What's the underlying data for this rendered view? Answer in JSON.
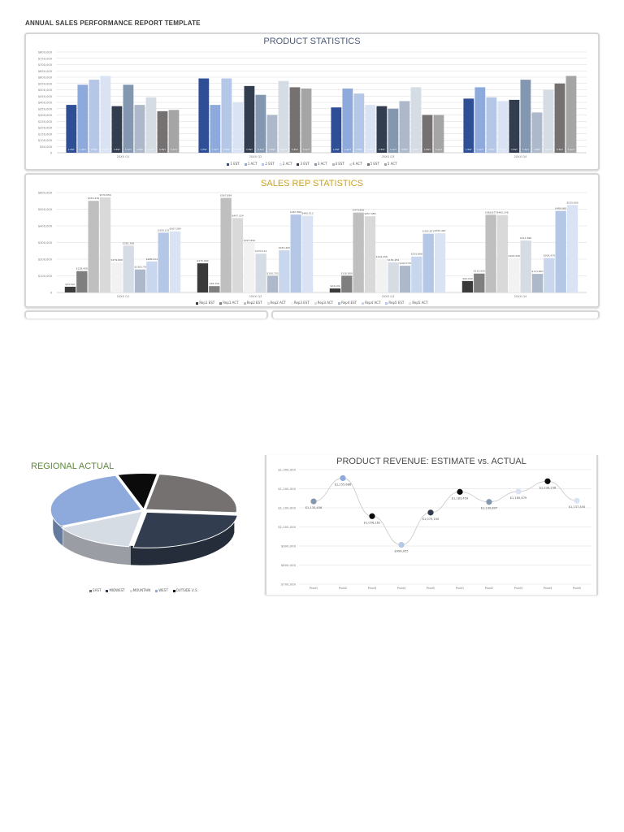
{
  "report": {
    "title": "ANNUAL SALES PERFORMANCE REPORT TEMPLATE"
  },
  "chart_data": [
    {
      "type": "bar",
      "title": "PRODUCT STATISTICS",
      "categories": [
        "20XX Q1",
        "20XX Q2",
        "20XX Q3",
        "20XX Q4"
      ],
      "ylim": [
        0,
        800000
      ],
      "yticks": [
        "$800,000",
        "$750,000",
        "$700,000",
        "$650,000",
        "$600,000",
        "$550,000",
        "$500,000",
        "$450,000",
        "$400,000",
        "$350,000",
        "$300,000",
        "$250,000",
        "$200,000",
        "$150,000",
        "$100,000",
        "$50,000",
        "0"
      ],
      "grid": true,
      "legend_position": "bottom",
      "series": [
        {
          "name": "1 EST",
          "color": "#2e4f96",
          "values": [
            380000,
            590000,
            360000,
            430000
          ]
        },
        {
          "name": "1 ACT",
          "color": "#8ea9dc",
          "values": [
            540000,
            380000,
            510000,
            520000
          ]
        },
        {
          "name": "2 EST",
          "color": "#b4c7e7",
          "values": [
            580000,
            590000,
            470000,
            440000
          ]
        },
        {
          "name": "2 ACT",
          "color": "#dae3f3",
          "values": [
            610000,
            400000,
            380000,
            410000
          ]
        },
        {
          "name": "3 EST",
          "color": "#323e4f",
          "values": [
            370000,
            530000,
            370000,
            420000
          ]
        },
        {
          "name": "3 ACT",
          "color": "#8497b0",
          "values": [
            540000,
            460000,
            350000,
            580000
          ]
        },
        {
          "name": "4 EST",
          "color": "#adb9ca",
          "values": [
            380000,
            300000,
            410000,
            320000
          ]
        },
        {
          "name": "4 ACT",
          "color": "#d6dce4",
          "values": [
            440000,
            570000,
            520000,
            500000
          ]
        },
        {
          "name": "5 EST",
          "color": "#767171",
          "values": [
            330000,
            520000,
            300000,
            550000
          ]
        },
        {
          "name": "5 ACT",
          "color": "#a5a5a5",
          "values": [
            340000,
            510000,
            300000,
            610000
          ]
        }
      ],
      "bar_labels": [
        "1 EST",
        "1 ACT",
        "2 EST",
        "2 ACT",
        "3 EST",
        "3 ACT",
        "4 EST",
        "4 ACT",
        "5 EST",
        "5 ACT"
      ]
    },
    {
      "type": "bar",
      "title": "SALES REP STATISTICS",
      "categories": [
        "20XX Q1",
        "20XX Q2",
        "20XX Q3",
        "20XX Q4"
      ],
      "ylim": [
        0,
        600000
      ],
      "yticks": [
        "$600,000",
        "$500,000",
        "$400,000",
        "$300,000",
        "$200,000",
        "$100,000",
        "0"
      ],
      "grid": true,
      "legend_position": "bottom",
      "series": [
        {
          "name": "Rep1 EST",
          "color": "#3a3a3a",
          "values": [
            34567,
            175000,
            24100,
            69000
          ]
        },
        {
          "name": "Rep1 ACT",
          "color": "#7f7f7f",
          "values": [
            128456,
            38156,
            100800,
            113500
          ]
        },
        {
          "name": "Rep2 EST",
          "color": "#bfbfbf",
          "values": [
            550156,
            567899,
            479856,
            466877
          ]
        },
        {
          "name": "Rep2 ACT",
          "color": "#d9d9d9",
          "values": [
            570856,
            447324,
            457985,
            465148
          ]
        },
        {
          "name": "Rep3 EST",
          "color": "#f2f2f2",
          "values": [
            179600,
            297856,
            199456,
            204508
          ]
        },
        {
          "name": "Rep3 ACT",
          "color": "#d6dce4",
          "values": [
            281569,
            233114,
            181254,
            311890
          ]
        },
        {
          "name": "Rep4 EST",
          "color": "#adb9ca",
          "values": [
            138178,
            100703,
            160578,
            111867
          ]
        },
        {
          "name": "Rep4 ACT",
          "color": "#c9d7ee",
          "values": [
            186211,
            253465,
            215866,
            206970
          ]
        },
        {
          "name": "Rep5 EST",
          "color": "#b4c7e7",
          "values": [
            359115,
            467899,
            352871,
            489965
          ]
        },
        {
          "name": "Rep5 ACT",
          "color": "#dae3f3",
          "values": [
            367289,
            460513,
            355487,
            525600
          ]
        }
      ],
      "data_labels": [
        [
          "$34,567",
          "$128,456",
          "$550,156",
          "$570,856",
          "$179,600",
          "$281,569",
          "$138,178",
          "$186,211",
          "$359,115",
          "$367,289"
        ],
        [
          "$175,000",
          "$38,156",
          "$567,899",
          "$447,324",
          "$297,856",
          "$233,114",
          "$100,703",
          "$253,465",
          "$467,899",
          "$460,513"
        ],
        [
          "$24,100",
          "$100,800",
          "$479,856",
          "$457,985",
          "$199,456",
          "$181,254",
          "$160,578",
          "$215,866",
          "$352,871",
          "$355,487"
        ],
        [
          "$69,000",
          "$113,500",
          "$466,877",
          "$465,148",
          "$204,508",
          "$311,890",
          "$111,867",
          "$206,970",
          "$489,965",
          "$525,600"
        ]
      ]
    },
    {
      "type": "pie",
      "title": "REGIONAL ACTUAL",
      "legend_position": "bottom",
      "slices": [
        {
          "name": "EAST",
          "value": 24,
          "color": "#767171"
        },
        {
          "name": "MIDWEST",
          "value": 26,
          "color": "#323e4f"
        },
        {
          "name": "MOUNTAIN",
          "value": 15,
          "color": "#d6dce4"
        },
        {
          "name": "WEST",
          "value": 28,
          "color": "#8ea9dc"
        },
        {
          "name": "OUTSIDE U.S.",
          "value": 7,
          "color": "#0b0b0b"
        }
      ]
    },
    {
      "type": "line",
      "title": "PRODUCT REVENUE: ESTIMATE vs. ACTUAL",
      "x": [
        "Prod1",
        "Prod2",
        "Prod3",
        "Prod4",
        "Prod5",
        "Prod1",
        "Prod2",
        "Prod3",
        "Prod4",
        "Prod5"
      ],
      "ylim": [
        700000,
        1300000
      ],
      "yticks": [
        "$1,300,000",
        "$1,200,000",
        "$1,100,000",
        "$1,000,000",
        "$900,000",
        "$800,000",
        "$700,000"
      ],
      "grid": true,
      "values": [
        1133456,
        1255666,
        1056162,
        906055,
        1075100,
        1183459,
        1130897,
        1185679,
        1239158,
        1137450
      ],
      "point_labels": [
        "$1,133,456",
        "$1,255,666",
        "$1,056,162",
        "$906,055",
        "$1,075,100",
        "$1,183,459",
        "$1,130,897",
        "$1,185,679",
        "$1,239,158",
        "$1,137,450"
      ],
      "point_colors": [
        "#8497b0",
        "#8ea9dc",
        "#0b0b0b",
        "#b4c7e7",
        "#323e4f",
        "#0b0b0b",
        "#8497b0",
        "#dae3f3",
        "#0b0b0b",
        "#dae3f3"
      ]
    }
  ]
}
